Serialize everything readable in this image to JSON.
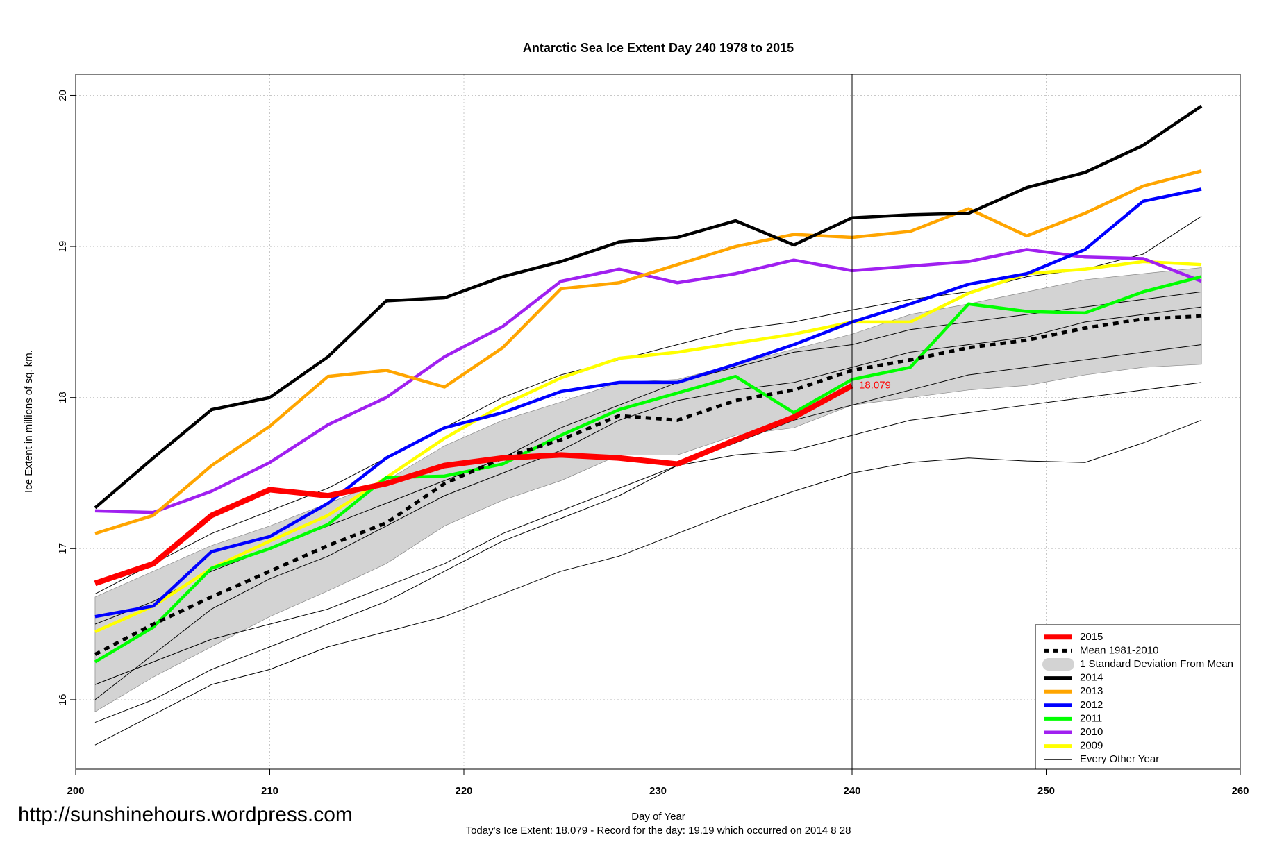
{
  "chart_data": {
    "type": "line",
    "title": "Antarctic Sea Ice Extent Day 240 1978 to 2015",
    "xlabel": "Day of Year",
    "ylabel": "Ice Extent in millions of sq. km.",
    "footer": "Today's Ice Extent: 18.079  - Record for the day: 19.19 which occurred on 2014 8 28",
    "source": "http://sunshinehours.wordpress.com",
    "xlim": [
      200,
      260
    ],
    "xticks": [
      200,
      210,
      220,
      230,
      240,
      250,
      260
    ],
    "ylim": [
      15.54,
      20.14
    ],
    "yticks": [
      16,
      17,
      18,
      19,
      20
    ],
    "grid": true,
    "vline": 240,
    "legend": "bottom-right",
    "x": [
      201,
      204,
      207,
      210,
      213,
      216,
      219,
      222,
      225,
      228,
      231,
      234,
      237,
      240,
      243,
      246,
      249,
      252,
      255,
      258
    ],
    "band": {
      "name": "1 Standard Deviation From Mean",
      "color": "#d3d3d3",
      "upper": [
        16.68,
        16.85,
        17.02,
        17.15,
        17.3,
        17.45,
        17.68,
        17.85,
        17.97,
        18.1,
        18.12,
        18.22,
        18.32,
        18.42,
        18.55,
        18.62,
        18.7,
        18.78,
        18.82,
        18.86
      ],
      "lower": [
        15.92,
        16.15,
        16.35,
        16.55,
        16.72,
        16.9,
        17.15,
        17.32,
        17.45,
        17.62,
        17.62,
        17.75,
        17.8,
        17.95,
        18.0,
        18.05,
        18.08,
        18.15,
        18.2,
        18.22
      ]
    },
    "other_years": {
      "name": "Every Other Year",
      "color": "#000000",
      "values": [
        [
          15.7,
          15.9,
          16.1,
          16.2,
          16.35,
          16.45,
          16.55,
          16.7,
          16.85,
          16.95,
          17.1,
          17.25,
          17.38,
          17.5,
          17.57,
          17.6,
          17.58,
          17.57,
          17.7,
          17.85
        ],
        [
          15.85,
          16.0,
          16.2,
          16.35,
          16.5,
          16.65,
          16.85,
          17.05,
          17.2,
          17.35,
          17.55,
          17.62,
          17.65,
          17.75,
          17.85,
          17.9,
          17.95,
          18.0,
          18.05,
          18.1
        ],
        [
          16.0,
          16.3,
          16.6,
          16.8,
          16.95,
          17.15,
          17.35,
          17.5,
          17.65,
          17.85,
          17.98,
          18.05,
          18.1,
          18.2,
          18.3,
          18.35,
          18.4,
          18.5,
          18.55,
          18.6
        ],
        [
          16.7,
          16.9,
          17.1,
          17.25,
          17.4,
          17.6,
          17.8,
          18.0,
          18.15,
          18.25,
          18.35,
          18.45,
          18.5,
          18.58,
          18.65,
          18.7,
          18.8,
          18.85,
          18.95,
          19.2
        ],
        [
          16.1,
          16.25,
          16.4,
          16.5,
          16.6,
          16.75,
          16.9,
          17.1,
          17.25,
          17.4,
          17.55,
          17.7,
          17.85,
          17.95,
          18.05,
          18.15,
          18.2,
          18.25,
          18.3,
          18.35
        ],
        [
          16.5,
          16.65,
          16.85,
          17.0,
          17.15,
          17.3,
          17.45,
          17.6,
          17.8,
          17.95,
          18.1,
          18.2,
          18.3,
          18.35,
          18.45,
          18.5,
          18.55,
          18.6,
          18.65,
          18.7
        ]
      ]
    },
    "series": [
      {
        "name": "2015",
        "color": "#ff0000",
        "values": [
          16.77,
          16.9,
          17.22,
          17.39,
          17.35,
          17.43,
          17.55,
          17.6,
          17.62,
          17.6,
          17.56,
          17.72,
          17.87,
          18.079,
          null,
          null,
          null,
          null,
          null,
          null
        ]
      },
      {
        "name": "Mean 1981-2010",
        "color": "#000000",
        "dashed": true,
        "values": [
          16.3,
          16.5,
          16.68,
          16.85,
          17.02,
          17.17,
          17.43,
          17.6,
          17.72,
          17.88,
          17.85,
          17.98,
          18.05,
          18.18,
          18.25,
          18.33,
          18.38,
          18.46,
          18.52,
          18.54
        ]
      },
      {
        "name": "2014",
        "color": "#000000",
        "values": [
          17.27,
          17.6,
          17.92,
          18.0,
          18.27,
          18.64,
          18.66,
          18.8,
          18.9,
          19.03,
          19.06,
          19.17,
          19.01,
          19.19,
          19.21,
          19.22,
          19.39,
          19.49,
          19.67,
          19.93
        ]
      },
      {
        "name": "2013",
        "color": "#ffa500",
        "values": [
          17.1,
          17.22,
          17.55,
          17.81,
          18.14,
          18.18,
          18.07,
          18.33,
          18.72,
          18.76,
          18.88,
          19.0,
          19.08,
          19.06,
          19.1,
          19.25,
          19.07,
          19.22,
          19.4,
          19.5
        ]
      },
      {
        "name": "2012",
        "color": "#0000ff",
        "values": [
          16.55,
          16.62,
          16.98,
          17.08,
          17.3,
          17.6,
          17.8,
          17.9,
          18.04,
          18.1,
          18.1,
          18.22,
          18.35,
          18.5,
          18.62,
          18.75,
          18.82,
          18.98,
          19.3,
          19.38
        ]
      },
      {
        "name": "2011",
        "color": "#00ff00",
        "values": [
          16.25,
          16.48,
          16.87,
          17.0,
          17.16,
          17.47,
          17.48,
          17.56,
          17.75,
          17.92,
          18.03,
          18.14,
          17.9,
          18.12,
          18.2,
          18.62,
          18.57,
          18.56,
          18.7,
          18.8
        ]
      },
      {
        "name": "2010",
        "color": "#a020f0",
        "values": [
          17.25,
          17.24,
          17.38,
          17.57,
          17.82,
          18.0,
          18.27,
          18.47,
          18.77,
          18.85,
          18.76,
          18.82,
          18.91,
          18.84,
          18.87,
          18.9,
          18.98,
          18.93,
          18.92,
          18.77
        ]
      },
      {
        "name": "2009",
        "color": "#ffff00",
        "values": [
          16.45,
          16.62,
          16.87,
          17.05,
          17.22,
          17.47,
          17.73,
          17.95,
          18.13,
          18.26,
          18.3,
          18.36,
          18.42,
          18.5,
          18.5,
          18.69,
          18.82,
          18.85,
          18.9,
          18.88
        ]
      }
    ]
  }
}
